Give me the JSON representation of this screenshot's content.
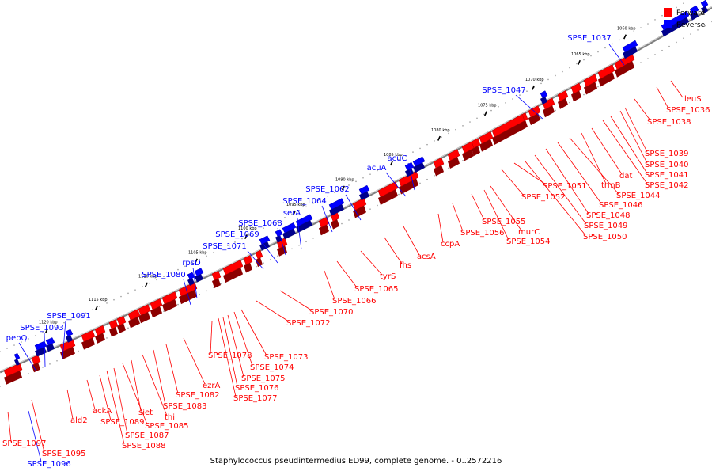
{
  "caption": "Staphylococcus pseudintermedius ED99, complete genome. - 0..2572216",
  "legend": [
    {
      "label": "Forward",
      "color": "#ff0000"
    },
    {
      "label": "Reverse",
      "color": "#0000ff"
    }
  ],
  "colors": {
    "forward": "#ff0000",
    "reverse": "#0000ff",
    "backbone": "#7f7f7f"
  },
  "ticks": [
    "1060 kbp",
    "1065 kbp",
    "1070 kbp",
    "1075 kbp",
    "1080 kbp",
    "1085 kbp",
    "1090 kbp",
    "1095 kbp",
    "1100 kbp",
    "1105 kbp",
    "1110 kbp",
    "1115 kbp",
    "1120 kbp"
  ],
  "reverse_genes": [
    "SPSE_1037",
    "SPSE_1047",
    "acuC",
    "acuA",
    "SPSE_1062",
    "SPSE_1064",
    "serA",
    "SPSE_1068",
    "SPSE_1069",
    "SPSE_1071",
    "rpsD",
    "SPSE_1080",
    "SPSE_1091",
    "SPSE_1093",
    "pepQ",
    "SPSE_1096"
  ],
  "forward_genes": [
    "leuS",
    "SPSE_1036",
    "SPSE_1038",
    "SPSE_1039",
    "SPSE_1040",
    "SPSE_1041",
    "SPSE_1042",
    "dat",
    "trmB",
    "SPSE_1044",
    "SPSE_1046",
    "SPSE_1048",
    "SPSE_1049",
    "SPSE_1050",
    "SPSE_1051",
    "SPSE_1052",
    "murC",
    "SPSE_1054",
    "SPSE_1055",
    "SPSE_1056",
    "ccpA",
    "acsA",
    "fhs",
    "tyrS",
    "SPSE_1065",
    "SPSE_1066",
    "SPSE_1070",
    "SPSE_1072",
    "SPSE_1073",
    "SPSE_1074",
    "SPSE_1075",
    "SPSE_1076",
    "SPSE_1077",
    "SPSE_1078",
    "ezrA",
    "SPSE_1082",
    "SPSE_1083",
    "thiI",
    "siet",
    "SPSE_1085",
    "SPSE_1087",
    "SPSE_1088",
    "SPSE_1089",
    "ackA",
    "ald2",
    "SPSE_1095",
    "SPSE_1097"
  ]
}
